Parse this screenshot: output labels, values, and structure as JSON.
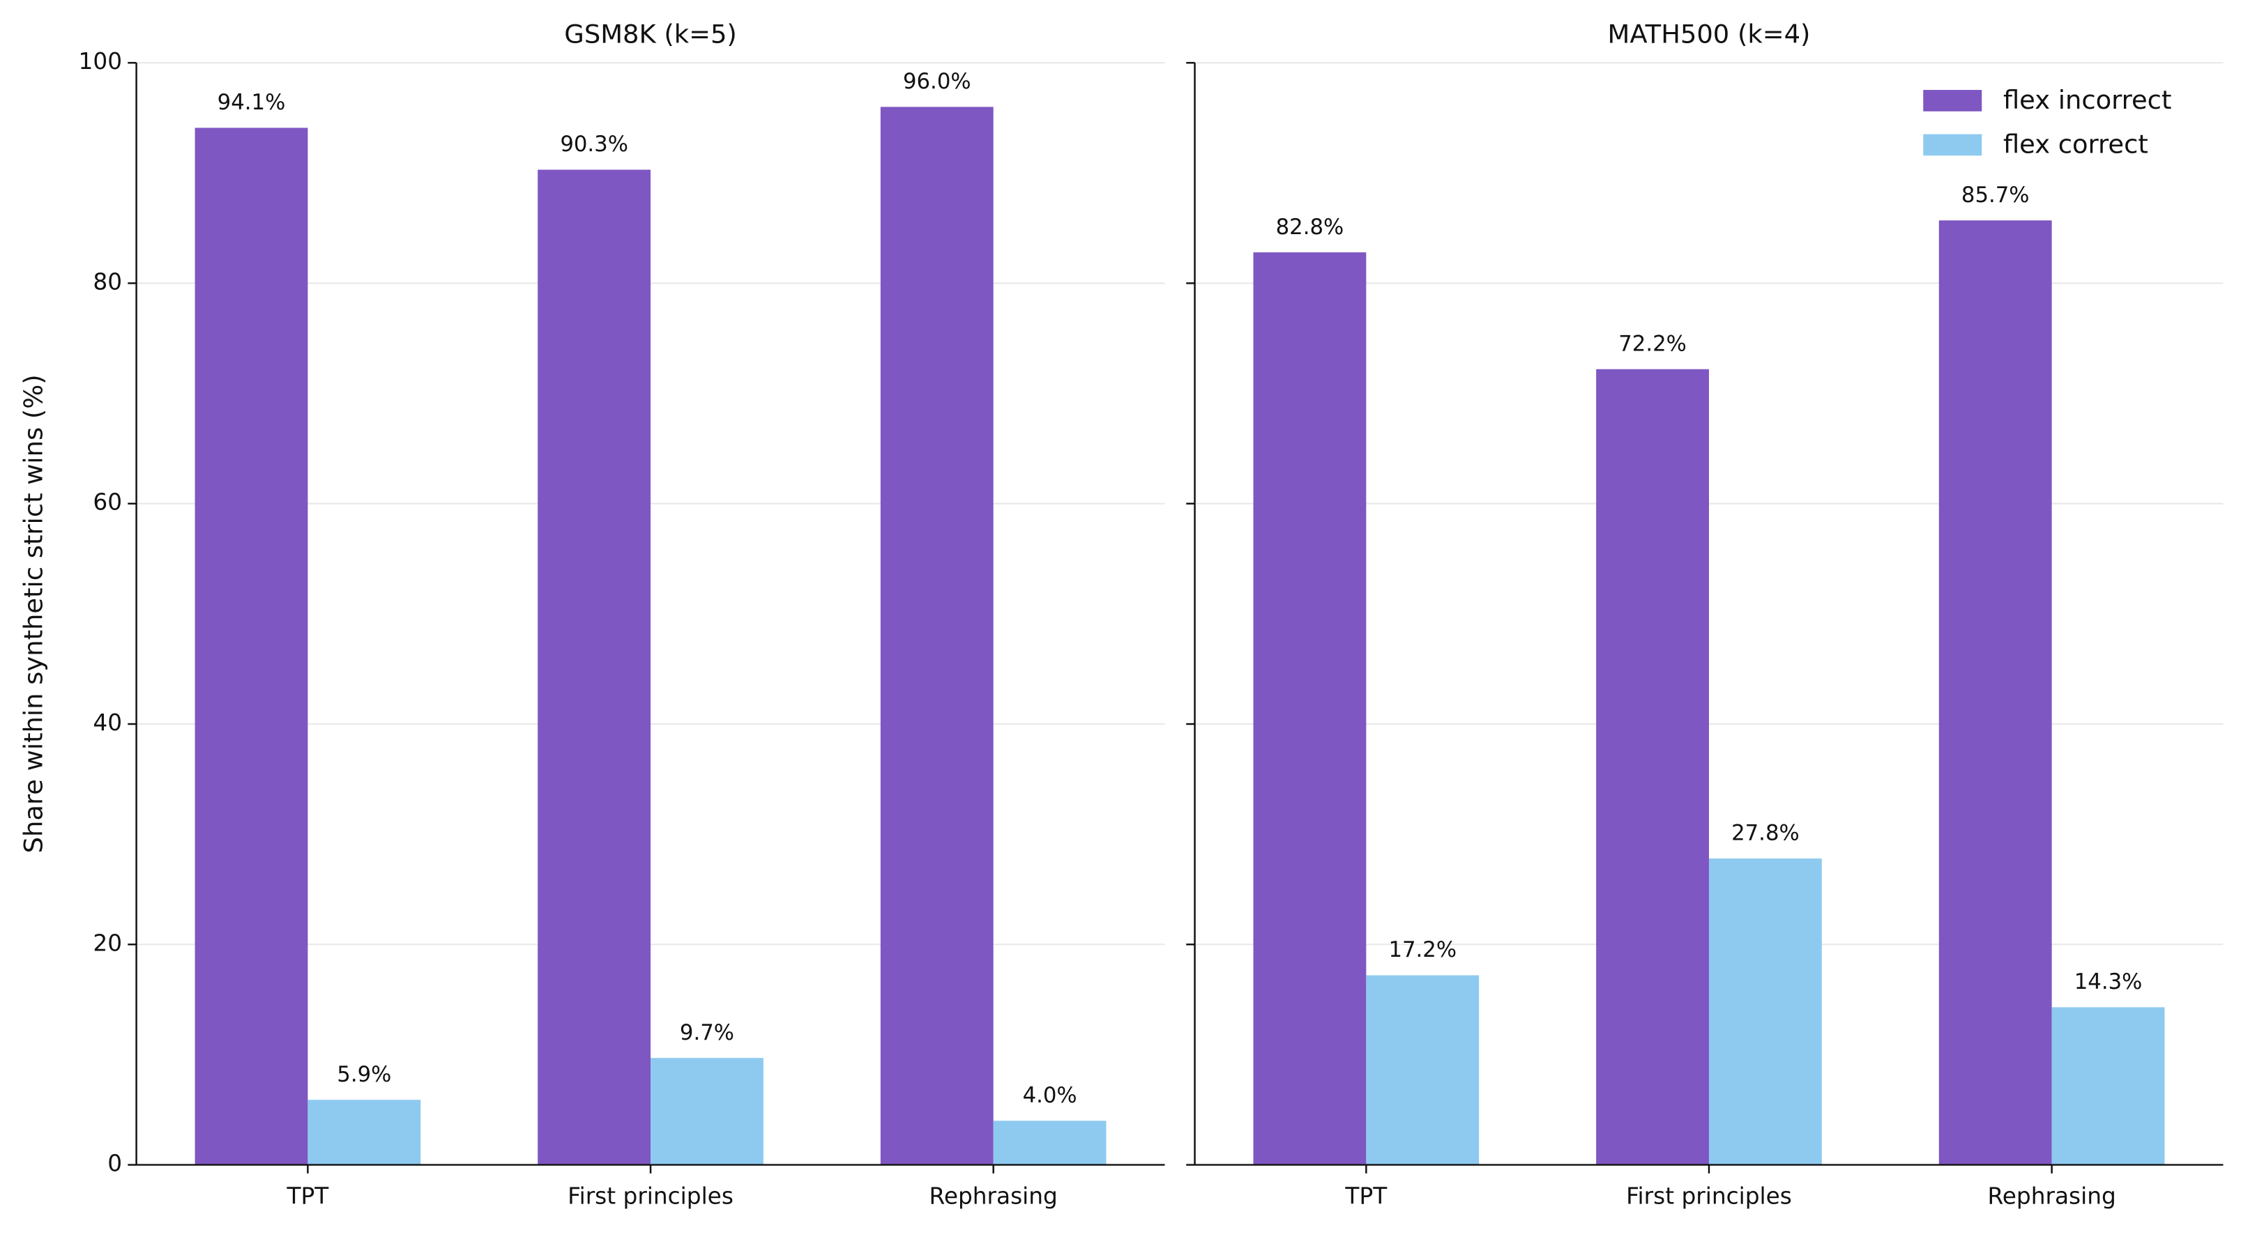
{
  "chart_data": [
    {
      "type": "bar",
      "title": "GSM8K (k=5)",
      "y_label": "Share within synthetic strict wins (%)",
      "categories": [
        "TPT",
        "First principles",
        "Rephrasing"
      ],
      "series": [
        {
          "color": "#7e57c2",
          "values": [
            94.1,
            90.3,
            96.0
          ],
          "value_labels": [
            "94.1%",
            "90.3%",
            "96.0%"
          ]
        },
        {
          "color": "#8ecaf0",
          "values": [
            5.9,
            9.7,
            4.0
          ],
          "value_labels": [
            "5.9%",
            "9.7%",
            "4.0%"
          ]
        }
      ],
      "ylim": [
        0,
        100
      ],
      "yticks": [
        0,
        20,
        40,
        60,
        80,
        100
      ],
      "grid": true
    },
    {
      "type": "bar",
      "title": "MATH500 (k=4)",
      "categories": [
        "TPT",
        "First principles",
        "Rephrasing"
      ],
      "series": [
        {
          "name": "flex incorrect",
          "color": "#7e57c2",
          "values": [
            82.8,
            72.2,
            85.7
          ],
          "value_labels": [
            "82.8%",
            "72.2%",
            "85.7%"
          ]
        },
        {
          "name": "flex correct",
          "color": "#8ecaf0",
          "values": [
            17.2,
            27.8,
            14.3
          ],
          "value_labels": [
            "17.2%",
            "27.8%",
            "14.3%"
          ]
        }
      ],
      "ylim": [
        0,
        100
      ],
      "yticks": [
        0,
        20,
        40,
        60,
        80,
        100
      ],
      "grid": true,
      "legend": "upper right"
    }
  ]
}
